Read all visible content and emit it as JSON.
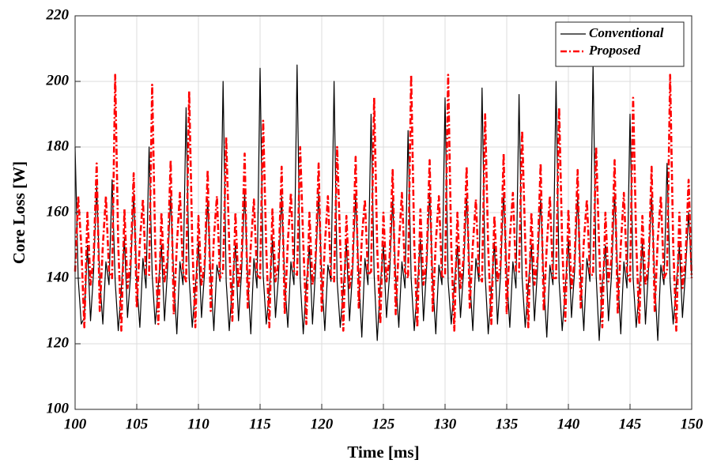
{
  "chart_data": {
    "type": "line",
    "x_label": "Time [ms]",
    "y_label": "Core Loss [W]",
    "xlim": [
      100,
      150
    ],
    "xticks": [
      100,
      105,
      110,
      115,
      120,
      125,
      130,
      135,
      140,
      145,
      150
    ],
    "ylim": [
      100,
      220
    ],
    "yticks": [
      100,
      120,
      140,
      160,
      180,
      200,
      220
    ],
    "grid": true,
    "legend": "upper right",
    "x": [
      100,
      100.25,
      100.5,
      100.75,
      101,
      101.25,
      101.5,
      101.75,
      102,
      102.25,
      102.5,
      102.75,
      103,
      103.25,
      103.5,
      103.75,
      104,
      104.25,
      104.5,
      104.75,
      105,
      105.25,
      105.5,
      105.75,
      106,
      106.25,
      106.5,
      106.75,
      107,
      107.25,
      107.5,
      107.75,
      108,
      108.25,
      108.5,
      108.75,
      109,
      109.25,
      109.5,
      109.75,
      110,
      110.25,
      110.5,
      110.75,
      111,
      111.25,
      111.5,
      111.75,
      112,
      112.25,
      112.5,
      112.75,
      113,
      113.25,
      113.5,
      113.75,
      114,
      114.25,
      114.5,
      114.75,
      115,
      115.25,
      115.5,
      115.75,
      116,
      116.25,
      116.5,
      116.75,
      117,
      117.25,
      117.5,
      117.75,
      118,
      118.25,
      118.5,
      118.75,
      119,
      119.25,
      119.5,
      119.75,
      120,
      120.25,
      120.5,
      120.75,
      121,
      121.25,
      121.5,
      121.75,
      122,
      122.25,
      122.5,
      122.75,
      123,
      123.25,
      123.5,
      123.75,
      124,
      124.25,
      124.5,
      124.75,
      125,
      125.25,
      125.5,
      125.75,
      126,
      126.25,
      126.5,
      126.75,
      127,
      127.25,
      127.5,
      127.75,
      128,
      128.25,
      128.5,
      128.75,
      129,
      129.25,
      129.5,
      129.75,
      130,
      130.25,
      130.5,
      130.75,
      131,
      131.25,
      131.5,
      131.75,
      132,
      132.25,
      132.5,
      132.75,
      133,
      133.25,
      133.5,
      133.75,
      134,
      134.25,
      134.5,
      134.75,
      135,
      135.25,
      135.5,
      135.75,
      136,
      136.25,
      136.5,
      136.75,
      137,
      137.25,
      137.5,
      137.75,
      138,
      138.25,
      138.5,
      138.75,
      139,
      139.25,
      139.5,
      139.75,
      140,
      140.25,
      140.5,
      140.75,
      141,
      141.25,
      141.5,
      141.75,
      142,
      142.25,
      142.5,
      142.75,
      143,
      143.25,
      143.5,
      143.75,
      144,
      144.25,
      144.5,
      144.75,
      145,
      145.25,
      145.5,
      145.75,
      146,
      146.25,
      146.5,
      146.75,
      147,
      147.25,
      147.5,
      147.75,
      148,
      148.25,
      148.5,
      148.75,
      149,
      149.25,
      149.5,
      149.75,
      150
    ],
    "series": [
      {
        "name": "Conventional",
        "color": "#000000",
        "style": "solid",
        "width": 1.2,
        "values": [
          180,
          140,
          126,
          128,
          150,
          127,
          142,
          168,
          140,
          126,
          145,
          138,
          170,
          139,
          124,
          137,
          152,
          128,
          141,
          166,
          139,
          125,
          146,
          137,
          180,
          141,
          126,
          138,
          150,
          127,
          143,
          165,
          140,
          123,
          145,
          138,
          192,
          140,
          125,
          137,
          151,
          128,
          142,
          164,
          141,
          124,
          144,
          139,
          200,
          139,
          124,
          138,
          150,
          127,
          142,
          166,
          140,
          123,
          146,
          137,
          204,
          141,
          126,
          136,
          152,
          128,
          141,
          165,
          139,
          125,
          145,
          138,
          205,
          140,
          123,
          138,
          150,
          126,
          143,
          166,
          140,
          124,
          144,
          139,
          200,
          139,
          125,
          137,
          151,
          127,
          142,
          165,
          141,
          122,
          146,
          138,
          190,
          141,
          121,
          138,
          150,
          128,
          141,
          164,
          140,
          125,
          145,
          137,
          185,
          140,
          124,
          137,
          152,
          127,
          143,
          166,
          139,
          123,
          144,
          138,
          195,
          139,
          126,
          138,
          150,
          128,
          142,
          165,
          140,
          124,
          146,
          139,
          198,
          141,
          123,
          136,
          151,
          126,
          141,
          166,
          141,
          125,
          145,
          137,
          196,
          140,
          125,
          138,
          150,
          127,
          143,
          164,
          139,
          122,
          144,
          138,
          200,
          139,
          124,
          137,
          152,
          128,
          142,
          165,
          140,
          124,
          146,
          139,
          205,
          141,
          121,
          138,
          150,
          127,
          141,
          166,
          141,
          123,
          145,
          137,
          190,
          140,
          125,
          137,
          151,
          126,
          143,
          165,
          139,
          121,
          144,
          138,
          175,
          139,
          126,
          138,
          150,
          128,
          142,
          160,
          140
        ]
      },
      {
        "name": "Proposed",
        "color": "#ff0000",
        "style": "dashdot",
        "width": 2.6,
        "values": [
          142,
          165,
          150,
          125,
          160,
          138,
          146,
          175,
          130,
          150,
          165,
          142,
          140,
          202,
          150,
          124,
          161,
          137,
          145,
          172,
          131,
          151,
          164,
          141,
          141,
          199,
          149,
          126,
          160,
          139,
          146,
          176,
          129,
          150,
          166,
          142,
          139,
          197,
          151,
          125,
          159,
          138,
          144,
          173,
          130,
          152,
          165,
          140,
          142,
          183,
          150,
          127,
          160,
          137,
          146,
          178,
          131,
          150,
          164,
          141,
          140,
          188,
          149,
          125,
          161,
          139,
          145,
          174,
          129,
          151,
          166,
          142,
          141,
          180,
          151,
          126,
          160,
          138,
          146,
          175,
          130,
          150,
          165,
          140,
          139,
          180,
          150,
          124,
          159,
          137,
          144,
          177,
          131,
          152,
          164,
          141,
          142,
          195,
          149,
          126,
          160,
          139,
          146,
          173,
          129,
          150,
          166,
          142,
          140,
          202,
          151,
          125,
          161,
          138,
          145,
          176,
          130,
          151,
          165,
          140,
          141,
          202,
          150,
          124,
          160,
          137,
          146,
          174,
          131,
          150,
          164,
          141,
          139,
          190,
          149,
          126,
          159,
          139,
          144,
          178,
          129,
          152,
          166,
          142,
          142,
          185,
          151,
          125,
          160,
          138,
          146,
          175,
          130,
          150,
          165,
          140,
          140,
          192,
          150,
          127,
          161,
          137,
          145,
          173,
          131,
          151,
          164,
          141,
          141,
          180,
          149,
          125,
          160,
          139,
          146,
          176,
          129,
          150,
          166,
          142,
          139,
          195,
          151,
          126,
          159,
          138,
          144,
          174,
          130,
          152,
          165,
          140,
          142,
          202,
          150,
          124,
          160,
          137,
          146,
          170,
          140
        ]
      }
    ]
  }
}
